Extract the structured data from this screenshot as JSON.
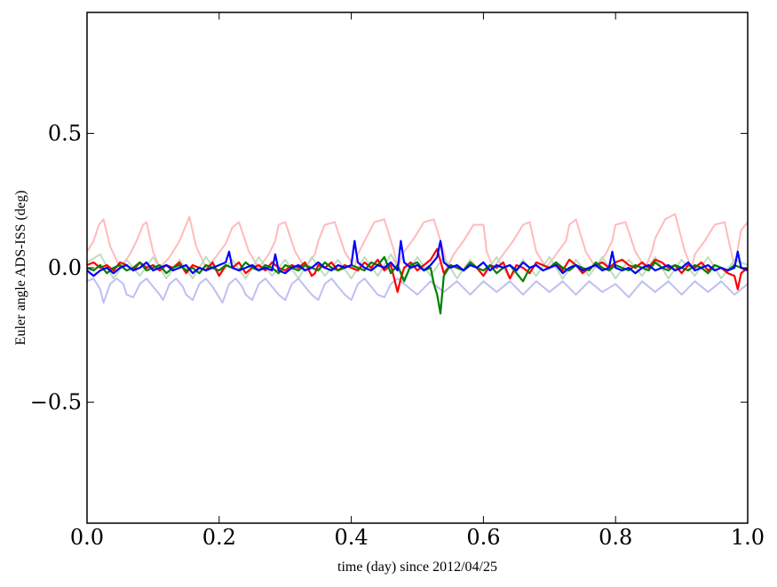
{
  "chart_data": {
    "type": "line",
    "title": "",
    "xlabel": "time (day) since 2012/04/25",
    "ylabel": "Euler angle ADS-ISS (deg)",
    "xlim": [
      0.0,
      1.0
    ],
    "ylim": [
      -0.95,
      0.95
    ],
    "x_ticks": [
      0.0,
      0.2,
      0.4,
      0.6,
      0.8,
      1.0
    ],
    "x_tick_labels": [
      "0.0",
      "0.2",
      "0.4",
      "0.6",
      "0.8",
      "1.0"
    ],
    "y_ticks": [
      -0.5,
      0.0,
      0.5
    ],
    "y_tick_labels": [
      "−0.5",
      "0.0",
      "0.5"
    ],
    "grid": false,
    "legend": "none",
    "series": [
      {
        "color": "#ffbbbb",
        "x": [
          0.0,
          0.01,
          0.018,
          0.025,
          0.035,
          0.05,
          0.065,
          0.075,
          0.085,
          0.09,
          0.1,
          0.11,
          0.125,
          0.14,
          0.15,
          0.155,
          0.165,
          0.18,
          0.195,
          0.21,
          0.22,
          0.23,
          0.245,
          0.26,
          0.275,
          0.285,
          0.29,
          0.3,
          0.315,
          0.33,
          0.345,
          0.35,
          0.36,
          0.375,
          0.39,
          0.405,
          0.41,
          0.42,
          0.435,
          0.45,
          0.465,
          0.47,
          0.48,
          0.495,
          0.51,
          0.525,
          0.54,
          0.545,
          0.555,
          0.57,
          0.585,
          0.6,
          0.605,
          0.615,
          0.63,
          0.645,
          0.66,
          0.67,
          0.68,
          0.695,
          0.71,
          0.725,
          0.73,
          0.74,
          0.755,
          0.77,
          0.785,
          0.795,
          0.8,
          0.815,
          0.83,
          0.845,
          0.855,
          0.86,
          0.875,
          0.89,
          0.905,
          0.915,
          0.92,
          0.935,
          0.95,
          0.965,
          0.975,
          0.98,
          0.99,
          1.0
        ],
        "values": [
          0.06,
          0.1,
          0.16,
          0.18,
          0.08,
          0.0,
          0.05,
          0.1,
          0.16,
          0.17,
          0.06,
          0.0,
          0.04,
          0.1,
          0.16,
          0.19,
          0.08,
          0.0,
          0.04,
          0.09,
          0.15,
          0.17,
          0.06,
          0.0,
          0.05,
          0.1,
          0.16,
          0.17,
          0.06,
          0.0,
          0.05,
          0.1,
          0.16,
          0.17,
          0.06,
          0.0,
          0.05,
          0.1,
          0.17,
          0.18,
          0.06,
          0.0,
          0.06,
          0.11,
          0.17,
          0.18,
          0.06,
          0.0,
          0.05,
          0.1,
          0.16,
          0.16,
          0.06,
          0.0,
          0.05,
          0.1,
          0.16,
          0.17,
          0.06,
          0.0,
          0.05,
          0.1,
          0.16,
          0.18,
          0.06,
          0.0,
          0.05,
          0.1,
          0.16,
          0.17,
          0.06,
          0.0,
          0.06,
          0.11,
          0.18,
          0.2,
          0.06,
          0.0,
          0.05,
          0.1,
          0.16,
          0.17,
          0.06,
          0.0,
          0.14,
          0.17
        ]
      },
      {
        "color": "#bfdcbf",
        "x": [
          0.0,
          0.02,
          0.04,
          0.06,
          0.08,
          0.1,
          0.12,
          0.14,
          0.16,
          0.18,
          0.2,
          0.22,
          0.24,
          0.26,
          0.28,
          0.3,
          0.32,
          0.34,
          0.36,
          0.38,
          0.4,
          0.42,
          0.44,
          0.46,
          0.48,
          0.5,
          0.52,
          0.54,
          0.56,
          0.58,
          0.6,
          0.62,
          0.64,
          0.66,
          0.68,
          0.7,
          0.72,
          0.74,
          0.76,
          0.78,
          0.8,
          0.82,
          0.84,
          0.86,
          0.88,
          0.9,
          0.92,
          0.94,
          0.96,
          0.98,
          1.0
        ],
        "values": [
          0.02,
          0.05,
          -0.04,
          0.03,
          -0.03,
          0.04,
          -0.04,
          0.03,
          -0.04,
          0.04,
          -0.03,
          0.03,
          -0.04,
          0.04,
          -0.03,
          0.03,
          -0.04,
          0.04,
          -0.03,
          0.03,
          -0.04,
          0.04,
          -0.03,
          0.05,
          -0.04,
          0.04,
          -0.03,
          0.04,
          -0.04,
          0.03,
          -0.03,
          0.04,
          -0.04,
          0.03,
          -0.03,
          0.04,
          -0.04,
          0.03,
          -0.03,
          0.04,
          -0.04,
          0.03,
          -0.03,
          0.04,
          -0.04,
          0.03,
          -0.03,
          0.04,
          -0.04,
          0.03,
          0.01
        ]
      },
      {
        "color": "#bfbff2",
        "x": [
          0.0,
          0.01,
          0.02,
          0.025,
          0.035,
          0.045,
          0.055,
          0.06,
          0.07,
          0.08,
          0.09,
          0.1,
          0.11,
          0.115,
          0.125,
          0.135,
          0.145,
          0.15,
          0.16,
          0.17,
          0.18,
          0.19,
          0.2,
          0.205,
          0.215,
          0.225,
          0.235,
          0.24,
          0.25,
          0.26,
          0.27,
          0.28,
          0.29,
          0.3,
          0.31,
          0.32,
          0.33,
          0.34,
          0.35,
          0.36,
          0.37,
          0.38,
          0.39,
          0.4,
          0.41,
          0.42,
          0.43,
          0.44,
          0.45,
          0.46,
          0.47,
          0.48,
          0.5,
          0.52,
          0.54,
          0.56,
          0.58,
          0.6,
          0.62,
          0.64,
          0.66,
          0.68,
          0.7,
          0.72,
          0.74,
          0.76,
          0.78,
          0.8,
          0.82,
          0.84,
          0.86,
          0.88,
          0.9,
          0.92,
          0.94,
          0.96,
          0.98,
          1.0
        ],
        "values": [
          -0.05,
          -0.04,
          -0.08,
          -0.13,
          -0.06,
          -0.04,
          -0.06,
          -0.1,
          -0.11,
          -0.06,
          -0.04,
          -0.07,
          -0.1,
          -0.12,
          -0.06,
          -0.04,
          -0.07,
          -0.1,
          -0.12,
          -0.06,
          -0.04,
          -0.07,
          -0.11,
          -0.13,
          -0.06,
          -0.04,
          -0.07,
          -0.1,
          -0.12,
          -0.06,
          -0.04,
          -0.07,
          -0.1,
          -0.12,
          -0.06,
          -0.04,
          -0.07,
          -0.1,
          -0.12,
          -0.06,
          -0.04,
          -0.07,
          -0.1,
          -0.12,
          -0.06,
          -0.04,
          -0.07,
          -0.1,
          -0.11,
          -0.06,
          -0.04,
          -0.06,
          -0.1,
          -0.05,
          -0.09,
          -0.05,
          -0.1,
          -0.05,
          -0.09,
          -0.05,
          -0.1,
          -0.05,
          -0.09,
          -0.05,
          -0.1,
          -0.05,
          -0.09,
          -0.06,
          -0.11,
          -0.05,
          -0.09,
          -0.05,
          -0.1,
          -0.05,
          -0.09,
          -0.05,
          -0.1,
          -0.06
        ]
      },
      {
        "color": "#ff0000",
        "x": [
          0.0,
          0.01,
          0.02,
          0.03,
          0.04,
          0.05,
          0.06,
          0.07,
          0.08,
          0.09,
          0.1,
          0.11,
          0.12,
          0.13,
          0.14,
          0.15,
          0.16,
          0.17,
          0.18,
          0.19,
          0.2,
          0.21,
          0.22,
          0.23,
          0.24,
          0.25,
          0.26,
          0.27,
          0.28,
          0.29,
          0.3,
          0.31,
          0.32,
          0.33,
          0.34,
          0.345,
          0.35,
          0.36,
          0.37,
          0.38,
          0.39,
          0.4,
          0.41,
          0.42,
          0.43,
          0.44,
          0.45,
          0.46,
          0.47,
          0.475,
          0.48,
          0.49,
          0.5,
          0.51,
          0.52,
          0.53,
          0.54,
          0.55,
          0.56,
          0.57,
          0.58,
          0.59,
          0.6,
          0.61,
          0.62,
          0.63,
          0.64,
          0.65,
          0.66,
          0.67,
          0.68,
          0.69,
          0.7,
          0.71,
          0.72,
          0.73,
          0.74,
          0.75,
          0.76,
          0.77,
          0.78,
          0.79,
          0.8,
          0.81,
          0.82,
          0.83,
          0.84,
          0.85,
          0.86,
          0.87,
          0.88,
          0.89,
          0.9,
          0.91,
          0.92,
          0.93,
          0.94,
          0.95,
          0.96,
          0.97,
          0.98,
          0.985,
          0.99,
          1.0
        ],
        "values": [
          0.01,
          0.02,
          0.0,
          0.01,
          -0.01,
          0.02,
          0.01,
          -0.01,
          0.02,
          0.0,
          0.01,
          -0.01,
          0.01,
          0.0,
          0.02,
          -0.02,
          0.01,
          0.0,
          -0.01,
          0.02,
          -0.03,
          0.01,
          0.0,
          0.02,
          -0.02,
          0.0,
          0.01,
          -0.01,
          0.02,
          0.0,
          -0.01,
          0.01,
          0.0,
          0.02,
          -0.03,
          -0.02,
          0.01,
          0.0,
          0.02,
          -0.01,
          0.01,
          0.0,
          -0.01,
          0.02,
          0.0,
          0.03,
          -0.01,
          0.01,
          -0.09,
          -0.04,
          0.0,
          0.02,
          -0.01,
          0.01,
          0.03,
          0.07,
          -0.02,
          0.01,
          0.0,
          -0.01,
          0.02,
          0.0,
          -0.03,
          0.01,
          0.0,
          0.02,
          -0.04,
          0.01,
          0.0,
          -0.02,
          0.02,
          0.01,
          0.0,
          0.02,
          -0.01,
          0.03,
          0.01,
          -0.02,
          0.0,
          0.01,
          0.02,
          0.0,
          0.02,
          0.03,
          0.01,
          0.0,
          0.02,
          0.0,
          0.03,
          0.02,
          0.0,
          0.01,
          -0.02,
          0.01,
          0.0,
          0.02,
          -0.01,
          0.01,
          0.0,
          -0.02,
          -0.03,
          -0.08,
          -0.02,
          0.0
        ]
      },
      {
        "color": "#008000",
        "x": [
          0.0,
          0.01,
          0.02,
          0.03,
          0.04,
          0.05,
          0.06,
          0.07,
          0.08,
          0.09,
          0.1,
          0.11,
          0.12,
          0.13,
          0.14,
          0.15,
          0.16,
          0.17,
          0.18,
          0.19,
          0.2,
          0.21,
          0.22,
          0.23,
          0.24,
          0.25,
          0.26,
          0.27,
          0.28,
          0.29,
          0.3,
          0.31,
          0.32,
          0.33,
          0.34,
          0.35,
          0.36,
          0.37,
          0.38,
          0.39,
          0.4,
          0.41,
          0.42,
          0.43,
          0.44,
          0.45,
          0.46,
          0.47,
          0.48,
          0.49,
          0.5,
          0.51,
          0.52,
          0.525,
          0.53,
          0.535,
          0.54,
          0.55,
          0.56,
          0.57,
          0.58,
          0.59,
          0.6,
          0.61,
          0.62,
          0.63,
          0.64,
          0.65,
          0.66,
          0.67,
          0.68,
          0.69,
          0.7,
          0.71,
          0.72,
          0.73,
          0.74,
          0.75,
          0.76,
          0.77,
          0.78,
          0.79,
          0.8,
          0.81,
          0.82,
          0.83,
          0.84,
          0.85,
          0.86,
          0.87,
          0.88,
          0.89,
          0.9,
          0.91,
          0.92,
          0.93,
          0.94,
          0.95,
          0.96,
          0.97,
          0.98,
          0.99,
          1.0
        ],
        "values": [
          0.0,
          -0.01,
          0.01,
          -0.02,
          0.0,
          0.01,
          -0.01,
          0.0,
          0.02,
          -0.01,
          0.0,
          0.01,
          -0.02,
          0.0,
          0.01,
          -0.01,
          0.0,
          -0.02,
          0.01,
          0.0,
          -0.01,
          0.01,
          0.0,
          -0.01,
          0.02,
          0.0,
          -0.01,
          0.01,
          0.0,
          -0.02,
          0.01,
          0.0,
          -0.01,
          0.01,
          0.0,
          -0.01,
          0.02,
          0.0,
          -0.01,
          0.0,
          0.01,
          0.0,
          -0.01,
          0.02,
          0.01,
          0.04,
          -0.02,
          0.01,
          -0.05,
          0.01,
          0.02,
          -0.01,
          0.0,
          -0.06,
          -0.1,
          -0.17,
          -0.03,
          0.01,
          0.0,
          -0.01,
          0.02,
          0.0,
          -0.01,
          0.01,
          -0.02,
          0.0,
          0.01,
          -0.02,
          -0.05,
          0.0,
          0.01,
          -0.01,
          0.0,
          0.02,
          0.0,
          -0.01,
          0.01,
          0.0,
          -0.01,
          0.02,
          0.0,
          -0.01,
          0.01,
          0.0,
          -0.01,
          0.01,
          0.0,
          -0.01,
          0.02,
          0.0,
          -0.01,
          0.01,
          0.0,
          -0.01,
          0.01,
          0.0,
          -0.02,
          0.01,
          0.0,
          -0.01,
          0.01,
          0.0,
          -0.01
        ]
      },
      {
        "color": "#0000ff",
        "x": [
          0.0,
          0.01,
          0.02,
          0.03,
          0.04,
          0.05,
          0.06,
          0.07,
          0.08,
          0.09,
          0.1,
          0.11,
          0.12,
          0.13,
          0.14,
          0.15,
          0.16,
          0.17,
          0.18,
          0.19,
          0.2,
          0.21,
          0.215,
          0.22,
          0.23,
          0.24,
          0.25,
          0.26,
          0.27,
          0.28,
          0.285,
          0.29,
          0.3,
          0.31,
          0.32,
          0.33,
          0.34,
          0.35,
          0.36,
          0.37,
          0.38,
          0.39,
          0.4,
          0.405,
          0.41,
          0.42,
          0.43,
          0.44,
          0.45,
          0.46,
          0.47,
          0.475,
          0.48,
          0.49,
          0.5,
          0.51,
          0.52,
          0.53,
          0.535,
          0.54,
          0.55,
          0.56,
          0.57,
          0.58,
          0.59,
          0.6,
          0.61,
          0.62,
          0.63,
          0.64,
          0.65,
          0.66,
          0.67,
          0.68,
          0.69,
          0.7,
          0.71,
          0.72,
          0.73,
          0.74,
          0.75,
          0.76,
          0.77,
          0.78,
          0.79,
          0.795,
          0.8,
          0.81,
          0.82,
          0.83,
          0.84,
          0.85,
          0.86,
          0.87,
          0.88,
          0.89,
          0.9,
          0.91,
          0.92,
          0.93,
          0.94,
          0.95,
          0.96,
          0.97,
          0.98,
          0.985,
          0.99,
          1.0
        ],
        "values": [
          -0.01,
          -0.03,
          -0.01,
          0.0,
          -0.02,
          0.0,
          0.01,
          -0.01,
          0.0,
          0.02,
          -0.01,
          0.0,
          0.01,
          -0.01,
          0.0,
          0.01,
          -0.02,
          0.0,
          -0.01,
          0.0,
          0.01,
          0.02,
          0.06,
          0.0,
          -0.01,
          0.0,
          0.01,
          -0.01,
          0.0,
          -0.01,
          0.05,
          -0.01,
          -0.02,
          0.0,
          0.01,
          -0.01,
          0.0,
          0.02,
          0.0,
          -0.01,
          0.01,
          0.0,
          0.01,
          0.1,
          0.02,
          0.0,
          -0.01,
          0.01,
          0.0,
          0.02,
          -0.01,
          0.1,
          0.02,
          0.0,
          0.01,
          -0.01,
          0.01,
          0.04,
          0.1,
          0.02,
          0.0,
          0.01,
          -0.01,
          0.01,
          0.0,
          0.02,
          -0.01,
          0.01,
          0.0,
          0.01,
          -0.01,
          0.02,
          0.0,
          0.01,
          -0.01,
          0.0,
          0.01,
          -0.02,
          0.0,
          0.01,
          -0.01,
          0.0,
          0.01,
          -0.01,
          0.0,
          0.06,
          0.0,
          -0.01,
          0.0,
          -0.02,
          0.0,
          0.01,
          -0.01,
          0.0,
          0.01,
          -0.01,
          0.0,
          0.02,
          -0.01,
          0.0,
          0.01,
          -0.01,
          0.0,
          -0.01,
          0.0,
          0.06,
          0.0,
          -0.01
        ]
      }
    ]
  }
}
